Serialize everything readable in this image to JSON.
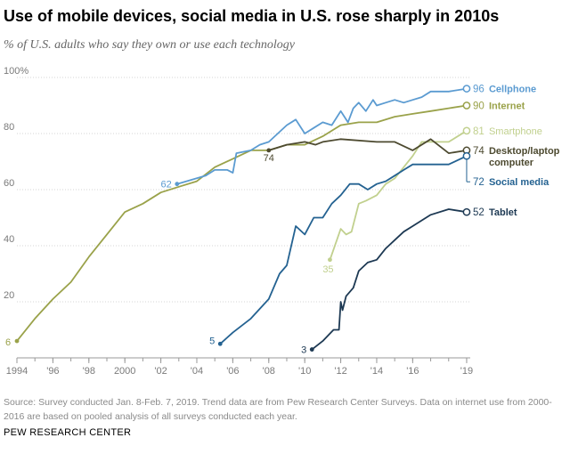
{
  "title": "Use of mobile devices, social media in U.S. rose sharply in 2010s",
  "subtitle": "% of U.S. adults who say they own or use each technology",
  "note": "Source: Survey conducted Jan. 8-Feb. 7, 2019. Trend data are from Pew Research Center Surveys. Data on internet use from 2000-2016 are based on pooled analysis of all surveys conducted each year.",
  "source_label": "PEW RESEARCH CENTER",
  "chart_data": {
    "type": "line",
    "title": "Use of mobile devices, social media in U.S. rose sharply in 2010s",
    "subtitle": "% of U.S. adults who say they own or use each technology",
    "xlim": [
      1994,
      2019.2
    ],
    "ylim": [
      0,
      100
    ],
    "x_ticks": [
      {
        "value": 1994,
        "label": "1994"
      },
      {
        "value": 1996,
        "label": "'96"
      },
      {
        "value": 1998,
        "label": "'98"
      },
      {
        "value": 2000,
        "label": "2000"
      },
      {
        "value": 2002,
        "label": "'02"
      },
      {
        "value": 2004,
        "label": "'04"
      },
      {
        "value": 2006,
        "label": "'06"
      },
      {
        "value": 2008,
        "label": "'08"
      },
      {
        "value": 2010,
        "label": "'10"
      },
      {
        "value": 2012,
        "label": "'12"
      },
      {
        "value": 2014,
        "label": "'14"
      },
      {
        "value": 2016,
        "label": "'16"
      },
      {
        "value": 2019,
        "label": "'19"
      }
    ],
    "y_ticks": [
      {
        "value": 20,
        "label": "20"
      },
      {
        "value": 40,
        "label": "40"
      },
      {
        "value": 60,
        "label": "60"
      },
      {
        "value": 80,
        "label": "80"
      },
      {
        "value": 100,
        "label": "100%"
      }
    ],
    "grid": true,
    "series": [
      {
        "name": "Internet",
        "color": "#9aa24a",
        "bold": true,
        "start_label": "6",
        "end_label": "90",
        "name_label": [
          "Internet"
        ],
        "points": [
          [
            1994,
            6
          ],
          [
            1995,
            14
          ],
          [
            1996,
            21
          ],
          [
            1997,
            27
          ],
          [
            1998,
            36
          ],
          [
            1999,
            44
          ],
          [
            2000,
            52
          ],
          [
            2001,
            55
          ],
          [
            2002,
            59
          ],
          [
            2003,
            61
          ],
          [
            2004,
            63
          ],
          [
            2005,
            68
          ],
          [
            2006,
            71
          ],
          [
            2007,
            74
          ],
          [
            2008,
            74
          ],
          [
            2009,
            76
          ],
          [
            2010,
            76
          ],
          [
            2011,
            79
          ],
          [
            2012,
            83
          ],
          [
            2013,
            84
          ],
          [
            2014,
            84
          ],
          [
            2015,
            86
          ],
          [
            2016,
            87
          ],
          [
            2017,
            88
          ],
          [
            2018,
            89
          ],
          [
            2019,
            90
          ]
        ]
      },
      {
        "name": "Cellphone",
        "color": "#5b9bd1",
        "bold": true,
        "start_label": "62",
        "end_label": "96",
        "name_label": [
          "Cellphone"
        ],
        "points": [
          [
            2002.9,
            62
          ],
          [
            2004.5,
            65
          ],
          [
            2005,
            67
          ],
          [
            2005.7,
            67
          ],
          [
            2006,
            66
          ],
          [
            2006.2,
            73
          ],
          [
            2007,
            74
          ],
          [
            2007.5,
            76
          ],
          [
            2008,
            77
          ],
          [
            2008.5,
            80
          ],
          [
            2009,
            83
          ],
          [
            2009.5,
            85
          ],
          [
            2010,
            80
          ],
          [
            2010.5,
            82
          ],
          [
            2011,
            84
          ],
          [
            2011.5,
            83
          ],
          [
            2012,
            88
          ],
          [
            2012.4,
            84
          ],
          [
            2012.7,
            89
          ],
          [
            2013,
            91
          ],
          [
            2013.4,
            88
          ],
          [
            2013.8,
            92
          ],
          [
            2014,
            90
          ],
          [
            2014.5,
            91
          ],
          [
            2015,
            92
          ],
          [
            2015.5,
            91
          ],
          [
            2016,
            92
          ],
          [
            2016.5,
            93
          ],
          [
            2017,
            95
          ],
          [
            2018,
            95
          ],
          [
            2019,
            96
          ]
        ]
      },
      {
        "name": "Smartphone",
        "color": "#c1d08e",
        "bold": false,
        "start_label": "35",
        "end_label": "81",
        "name_label": [
          "Smartphone"
        ],
        "points": [
          [
            2011.4,
            35
          ],
          [
            2012,
            46
          ],
          [
            2012.3,
            44
          ],
          [
            2012.6,
            45
          ],
          [
            2013,
            55
          ],
          [
            2013.4,
            56
          ],
          [
            2014,
            58
          ],
          [
            2014.5,
            62
          ],
          [
            2015,
            64
          ],
          [
            2015.5,
            68
          ],
          [
            2016,
            72
          ],
          [
            2016.5,
            77
          ],
          [
            2017,
            77
          ],
          [
            2018,
            77
          ],
          [
            2019,
            81
          ]
        ]
      },
      {
        "name": "Desktop/laptop computer",
        "color": "#4d4a30",
        "bold": true,
        "start_label": "74",
        "end_label": "74",
        "name_label": [
          "Desktop/laptop",
          "computer"
        ],
        "points": [
          [
            2008,
            74
          ],
          [
            2009,
            76
          ],
          [
            2010,
            77
          ],
          [
            2010.6,
            76
          ],
          [
            2011,
            77
          ],
          [
            2012,
            78
          ],
          [
            2014,
            77
          ],
          [
            2015,
            77
          ],
          [
            2016,
            74
          ],
          [
            2017,
            78
          ],
          [
            2018,
            73
          ],
          [
            2019,
            74
          ]
        ]
      },
      {
        "name": "Social media",
        "color": "#246291",
        "bold": true,
        "start_label": "5",
        "end_label": "72",
        "name_label": [
          "Social media"
        ],
        "points": [
          [
            2005.3,
            5
          ],
          [
            2006,
            9
          ],
          [
            2007,
            14
          ],
          [
            2008,
            21
          ],
          [
            2008.6,
            30
          ],
          [
            2009,
            33
          ],
          [
            2009.5,
            47
          ],
          [
            2010,
            44
          ],
          [
            2010.5,
            50
          ],
          [
            2011,
            50
          ],
          [
            2011.5,
            55
          ],
          [
            2012,
            58
          ],
          [
            2012.5,
            62
          ],
          [
            2013,
            62
          ],
          [
            2013.5,
            60
          ],
          [
            2014,
            62
          ],
          [
            2014.5,
            63
          ],
          [
            2015,
            65
          ],
          [
            2015.5,
            67
          ],
          [
            2016,
            69
          ],
          [
            2017,
            69
          ],
          [
            2018,
            69
          ],
          [
            2019,
            72
          ]
        ]
      },
      {
        "name": "Tablet",
        "color": "#1d3953",
        "bold": true,
        "start_label": "3",
        "end_label": "52",
        "name_label": [
          "Tablet"
        ],
        "points": [
          [
            2010.4,
            3
          ],
          [
            2011,
            6
          ],
          [
            2011.6,
            10
          ],
          [
            2011.9,
            10
          ],
          [
            2012,
            20
          ],
          [
            2012.1,
            17
          ],
          [
            2012.3,
            22
          ],
          [
            2012.7,
            25
          ],
          [
            2013,
            31
          ],
          [
            2013.5,
            34
          ],
          [
            2014,
            35
          ],
          [
            2014.5,
            39
          ],
          [
            2015,
            42
          ],
          [
            2015.5,
            45
          ],
          [
            2016,
            47
          ],
          [
            2017,
            51
          ],
          [
            2018,
            53
          ],
          [
            2019,
            52
          ]
        ]
      }
    ]
  }
}
